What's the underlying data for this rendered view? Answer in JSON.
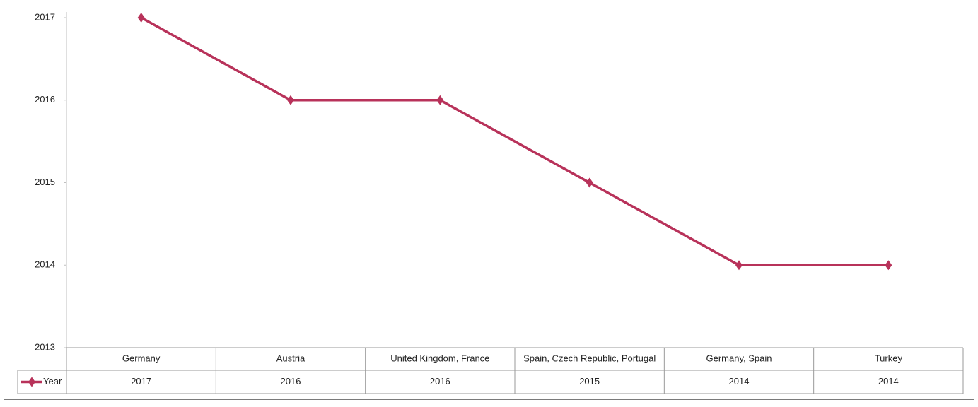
{
  "chart_data": {
    "type": "line",
    "categories": [
      "Germany",
      "Austria",
      "United Kingdom, France",
      "Spain, Czech Republic, Portugal",
      "Germany, Spain",
      "Turkey"
    ],
    "series": [
      {
        "name": "Year",
        "color": "#b8325a",
        "values": [
          2017,
          2016,
          2016,
          2015,
          2014,
          2014
        ]
      }
    ],
    "ylim": [
      2013,
      2017
    ],
    "yticks": [
      2013,
      2014,
      2015,
      2016,
      2017
    ],
    "grid": false
  }
}
